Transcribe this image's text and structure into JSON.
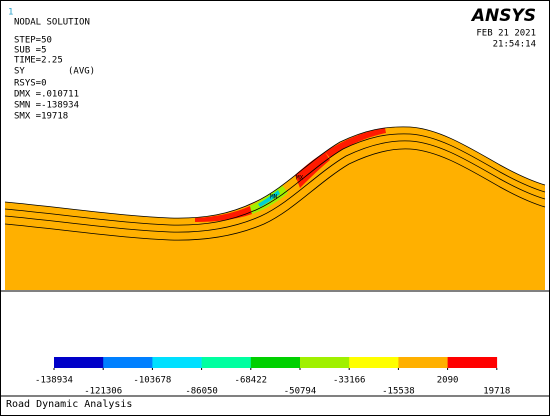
{
  "header": {
    "index": "1",
    "title": "NODAL SOLUTION",
    "step": "STEP=50",
    "sub": "SUB =5",
    "time": "TIME=2.25",
    "item": "SY",
    "avg": "(AVG)",
    "rsys": "RSYS=0",
    "dmx": "DMX =.010711",
    "smn": "SMN =-138934",
    "smx": "SMX =19718"
  },
  "logo": "ANSYS",
  "date": "FEB 21 2021",
  "clock": "21:54:14",
  "markers": {
    "min": "MN",
    "max": "MX"
  },
  "legend": {
    "colors": [
      "#0000c8",
      "#0080ff",
      "#00e0ff",
      "#00ffa0",
      "#00d000",
      "#a0f000",
      "#ffff00",
      "#ffb000",
      "#ff0000"
    ],
    "labels": [
      -138934,
      -121306,
      -103678,
      -86050,
      -68422,
      -50794,
      -33166,
      -15538,
      2090,
      19718
    ]
  },
  "footer": "Road Dynamic Analysis"
}
